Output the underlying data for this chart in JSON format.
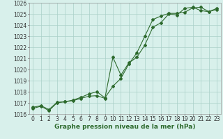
{
  "xlabel": "Graphe pression niveau de la mer (hPa)",
  "hours": [
    0,
    1,
    2,
    3,
    4,
    5,
    6,
    7,
    8,
    9,
    10,
    11,
    12,
    13,
    14,
    15,
    16,
    17,
    18,
    19,
    20,
    21,
    22,
    23
  ],
  "line1": [
    1016.5,
    1016.7,
    1016.3,
    1017.0,
    1017.1,
    1017.2,
    1017.4,
    1017.6,
    1017.65,
    1017.4,
    1021.1,
    1019.5,
    1020.6,
    1021.1,
    1022.2,
    1023.8,
    1024.2,
    1025.0,
    1024.9,
    1025.5,
    1025.6,
    1025.3,
    1025.2,
    1025.4
  ],
  "line2": [
    1016.6,
    1016.75,
    1016.4,
    1017.05,
    1017.1,
    1017.25,
    1017.5,
    1017.8,
    1018.0,
    1017.45,
    1018.5,
    1019.2,
    1020.5,
    1021.5,
    1023.0,
    1024.5,
    1024.8,
    1025.05,
    1025.05,
    1025.15,
    1025.55,
    1025.6,
    1025.2,
    1025.5
  ],
  "ylim": [
    1016,
    1026
  ],
  "yticks": [
    1016,
    1017,
    1018,
    1019,
    1020,
    1021,
    1022,
    1023,
    1024,
    1025,
    1026
  ],
  "line_color": "#2d6a2d",
  "bg_color": "#d8f0eb",
  "grid_color": "#aacfc8",
  "marker": "D",
  "marker_size": 2.0,
  "line_width": 0.8,
  "label_fontsize": 6.5,
  "tick_fontsize": 5.5
}
